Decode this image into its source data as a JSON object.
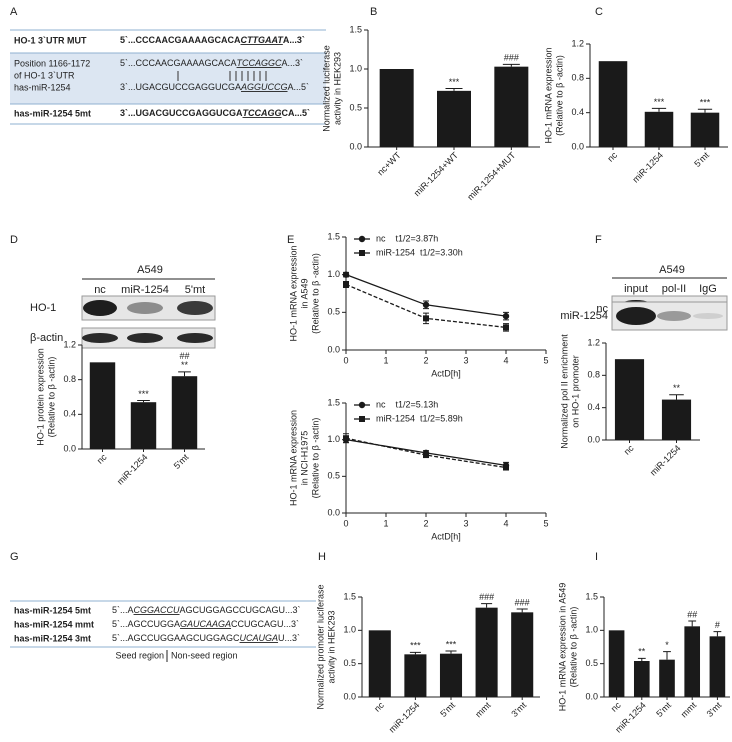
{
  "panel_letters": [
    "A",
    "B",
    "C",
    "D",
    "E",
    "F",
    "G",
    "H",
    "I"
  ],
  "table_a": {
    "rows": [
      {
        "label": [
          "HO-1 3`UTR MUT"
        ],
        "sequences": [
          [
            "5`...CCCAACGAAAAGCACA",
            "CTTGAAT",
            "A...3`"
          ]
        ]
      },
      {
        "label": [
          "Position 1166-1172",
          "of HO-1 3`UTR",
          "has-miR-1254"
        ],
        "sequences": [
          [
            "5`...CCCAACGAAAAGCACA",
            "TCCAGGC",
            "A...3`"
          ],
          [
            "3`...UGACGUCCGAGGUCGA",
            "AGGUCCG",
            "A...5`"
          ]
        ]
      },
      {
        "label": [
          "has-miR-1254 5mt"
        ],
        "sequences": [
          [
            "3`...UGACGUCCGAGGUCGA",
            "TCCAGG",
            "CA...5`"
          ]
        ]
      }
    ]
  },
  "blot_d": {
    "cell_line": "A549",
    "lanes": [
      "nc",
      "miR-1254",
      "5'mt"
    ],
    "rows": [
      "HO-1",
      "β-actin"
    ]
  },
  "blot_f": {
    "cell_line": "A549",
    "lanes": [
      "input",
      "pol-II",
      "IgG"
    ],
    "rows": [
      "nc",
      "miR-1254"
    ]
  },
  "table_g": {
    "rows": [
      {
        "label": "has-miR-1254 5mt",
        "sequence": [
          "5`...A",
          "CGGACCU",
          "AGCUGGAGCCUGCAGU...3`"
        ]
      },
      {
        "label": "has-miR-1254 mmt",
        "sequence": [
          "5`...AGCCUGGA",
          "GAUCAAGA",
          "CCUGCAGU...3`"
        ]
      },
      {
        "label": "has-miR-1254 3mt",
        "sequence": [
          "5`...AGCCUGGAAGCUGGAGC",
          "UCAUGA",
          "U...3`"
        ]
      }
    ],
    "legend": [
      "Seed region",
      "Non-seed region"
    ]
  },
  "chart_data": [
    {
      "type": "bar",
      "y_label": [
        "Normalized luciferase",
        "activity in HEK293"
      ],
      "categories": [
        "nc+WT",
        "miR-1254+WT",
        "miR-1254+MUT"
      ],
      "values": [
        1.0,
        0.72,
        1.03
      ],
      "errors": [
        null,
        0.03,
        0.03
      ],
      "annotations": [
        null,
        [
          "***"
        ],
        [
          "###"
        ]
      ],
      "color": "#1a1a1a",
      "ylim": [
        0,
        1.5
      ],
      "yticks": [
        {
          "value": 0,
          "label": "0.0"
        },
        {
          "value": 0.5,
          "label": "0.5"
        },
        {
          "value": 1,
          "label": "1.0"
        },
        {
          "value": 1.5,
          "label": "1.5"
        }
      ]
    },
    {
      "type": "bar",
      "y_label": [
        "HO-1 mRNA expression",
        "(Relative to β -actin)"
      ],
      "categories": [
        "nc",
        "miR-1254",
        "5'mt"
      ],
      "values": [
        1.0,
        0.41,
        0.4
      ],
      "errors": [
        null,
        0.04,
        0.04
      ],
      "annotations": [
        null,
        [
          "***"
        ],
        [
          "***"
        ]
      ],
      "color": "#1a1a1a",
      "ylim": [
        0,
        1.2
      ],
      "yticks": [
        {
          "value": 0,
          "label": "0.0"
        },
        0.4,
        0.8,
        1.2
      ]
    },
    {
      "type": "bar",
      "y_label": [
        "HO-1 protein expression",
        "(Relative to β -actin)"
      ],
      "categories": [
        "nc",
        "miR-1254",
        "5'mt"
      ],
      "values": [
        1.0,
        0.54,
        0.84
      ],
      "errors": [
        null,
        0.02,
        0.05
      ],
      "annotations": [
        null,
        [
          "***"
        ],
        [
          "##",
          "**"
        ]
      ],
      "color": "#1a1a1a",
      "ylim": [
        0,
        1.2
      ],
      "yticks": [
        {
          "value": 0,
          "label": "0.0"
        },
        0.4,
        0.8,
        1.2
      ]
    },
    {
      "type": "line",
      "y_label": [
        "HO-1 mRNA expression",
        "in A549",
        "(Relative to β -actin)"
      ],
      "x_label": "ActD[h]",
      "x": [
        0,
        2,
        4
      ],
      "series": [
        {
          "name": "nc    t1/2=3.87h",
          "color": "#1a1a1a",
          "marker": "circle",
          "line_style": "solid",
          "values": [
            1.0,
            0.6,
            0.45
          ],
          "errors": [
            0.03,
            0.05,
            0.05
          ]
        },
        {
          "name": "miR-1254  t1/2=3.30h",
          "color": "#1a1a1a",
          "marker": "square",
          "line_style": "dashed",
          "values": [
            0.87,
            0.42,
            0.3
          ],
          "errors": [
            0.04,
            0.07,
            0.05
          ]
        }
      ],
      "xlim": [
        0,
        5
      ],
      "xticks": [
        0,
        1,
        2,
        3,
        4,
        5
      ],
      "ylim": [
        0,
        1.5
      ],
      "yticks": [
        {
          "value": 0,
          "label": "0.0"
        },
        {
          "value": 0.5,
          "label": "0.5"
        },
        {
          "value": 1,
          "label": "1.0"
        },
        {
          "value": 1.5,
          "label": "1.5"
        }
      ]
    },
    {
      "type": "line",
      "y_label": [
        "HO-1 mRNA expression",
        "in NCI-H1975",
        "(Relative to β -actin)"
      ],
      "x_label": "ActD[h]",
      "x": [
        0,
        2,
        4
      ],
      "series": [
        {
          "name": "nc    t1/2=5.13h",
          "color": "#1a1a1a",
          "marker": "circle",
          "line_style": "solid",
          "values": [
            1.0,
            0.82,
            0.65
          ],
          "errors": [
            0.04,
            0.03,
            0.04
          ]
        },
        {
          "name": "miR-1254  t1/2=5.89h",
          "color": "#1a1a1a",
          "marker": "square",
          "line_style": "dashed",
          "values": [
            1.02,
            0.79,
            0.62
          ],
          "errors": [
            0.06,
            0.03,
            0.03
          ]
        }
      ],
      "xlim": [
        0,
        5
      ],
      "xticks": [
        0,
        1,
        2,
        3,
        4,
        5
      ],
      "ylim": [
        0,
        1.5
      ],
      "yticks": [
        {
          "value": 0,
          "label": "0.0"
        },
        {
          "value": 0.5,
          "label": "0.5"
        },
        {
          "value": 1,
          "label": "1.0"
        },
        {
          "value": 1.5,
          "label": "1.5"
        }
      ]
    },
    {
      "type": "bar",
      "y_label": [
        "Normalized pol II enrichment",
        "on HO-1 promoter"
      ],
      "categories": [
        "nc",
        "miR-1254"
      ],
      "values": [
        1.0,
        0.5
      ],
      "errors": [
        null,
        0.06
      ],
      "annotations": [
        null,
        [
          "**"
        ]
      ],
      "color": "#1a1a1a",
      "ylim": [
        0,
        1.2
      ],
      "yticks": [
        {
          "value": 0,
          "label": "0.0"
        },
        0.4,
        0.8,
        1.2
      ]
    },
    {
      "type": "bar",
      "y_label": [
        "Normalized promoter luciferase",
        "activity in HEK293"
      ],
      "categories": [
        "nc",
        "miR-1254",
        "5'mt",
        "mmt",
        "3'mt"
      ],
      "values": [
        1.0,
        0.64,
        0.65,
        1.34,
        1.27
      ],
      "errors": [
        null,
        0.03,
        0.04,
        0.06,
        0.05
      ],
      "annotations": [
        null,
        [
          "***"
        ],
        [
          "***"
        ],
        [
          "###"
        ],
        [
          "###"
        ]
      ],
      "color": "#1a1a1a",
      "ylim": [
        0,
        1.5
      ],
      "yticks": [
        {
          "value": 0,
          "label": "0.0"
        },
        {
          "value": 0.5,
          "label": "0.5"
        },
        {
          "value": 1,
          "label": "1.0"
        },
        {
          "value": 1.5,
          "label": "1.5"
        }
      ]
    },
    {
      "type": "bar",
      "y_label": [
        "HO-1 mRNA expression in A549",
        "(Relative to β -actin)"
      ],
      "categories": [
        "nc",
        "miR-1254",
        "5'mt",
        "mmt",
        "3'mt"
      ],
      "values": [
        1.0,
        0.54,
        0.56,
        1.06,
        0.91
      ],
      "errors": [
        null,
        0.04,
        0.12,
        0.08,
        0.07
      ],
      "annotations": [
        null,
        [
          "**"
        ],
        [
          "*"
        ],
        [
          "##"
        ],
        [
          "#"
        ]
      ],
      "color": "#1a1a1a",
      "ylim": [
        0,
        1.5
      ],
      "yticks": [
        {
          "value": 0,
          "label": "0.0"
        },
        {
          "value": 0.5,
          "label": "0.5"
        },
        {
          "value": 1,
          "label": "1.0"
        },
        {
          "value": 1.5,
          "label": "1.5"
        }
      ]
    }
  ]
}
